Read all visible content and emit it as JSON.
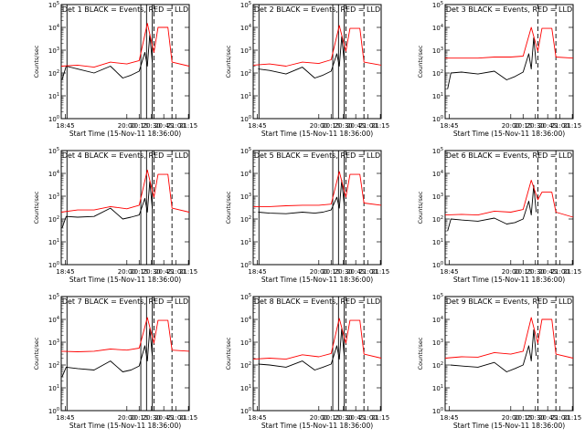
{
  "chart_data": [
    {
      "type": "line",
      "title": "Det 1  BLACK = Events, RED = LLD",
      "xlabel": "Start Time (15-Nov-11 18:36:00)",
      "ylabel": "Counts/sec",
      "ylog": true,
      "ylim": [
        1,
        100000
      ],
      "xlim": [
        "18:40",
        "21:16"
      ],
      "x_ticks": [
        "18:45",
        "20:00",
        "20:15",
        "20:30",
        "20:45",
        "21:00",
        "21:15"
      ],
      "y_ticks": [
        "10^0",
        "10^1",
        "10^2",
        "10^3",
        "10^4",
        "10^5"
      ],
      "series": [
        {
          "name": "BLACK = Events",
          "color": "#000000",
          "x": [
            "18:41",
            "18:46",
            "19:00",
            "19:20",
            "19:40",
            "19:55",
            "20:05",
            "20:15",
            "20:22",
            "20:25",
            "20:28",
            "20:31"
          ],
          "y": [
            50,
            200,
            150,
            100,
            200,
            60,
            80,
            120,
            800,
            200,
            5000,
            300
          ]
        },
        {
          "name": "RED = LLD",
          "color": "#ff0000",
          "x": [
            "18:40",
            "19:00",
            "19:20",
            "19:40",
            "20:00",
            "20:15",
            "20:25",
            "20:33",
            "20:38",
            "20:50",
            "20:55",
            "21:16"
          ],
          "y": [
            200,
            220,
            180,
            300,
            250,
            350,
            15000,
            800,
            10000,
            10000,
            300,
            200
          ]
        }
      ],
      "markers": {
        "solid": [
          "18:47",
          "20:17",
          "20:24",
          "20:31"
        ],
        "dashed": [
          "20:33",
          "20:55"
        ],
        "labels": [
          "F",
          "S",
          "E"
        ]
      }
    },
    {
      "type": "line",
      "title": "Det 2  BLACK = Events, RED = LLD",
      "xlabel": "Start Time (15-Nov-11 18:36:00)",
      "ylabel": "Counts/sec",
      "ylog": true,
      "ylim": [
        1,
        100000
      ],
      "xlim": [
        "18:40",
        "21:16"
      ],
      "x_ticks": [
        "18:45",
        "20:00",
        "20:15",
        "20:30",
        "20:45",
        "21:00",
        "21:15"
      ],
      "y_ticks": [
        "10^0",
        "10^1",
        "10^2",
        "10^3",
        "10^4",
        "10^5"
      ],
      "series": [
        {
          "name": "BLACK = Events",
          "color": "#000000",
          "x": [
            "18:46",
            "19:00",
            "19:20",
            "19:40",
            "19:55",
            "20:05",
            "20:15",
            "20:22",
            "20:25",
            "20:28",
            "20:31"
          ],
          "y": [
            150,
            130,
            90,
            180,
            60,
            80,
            120,
            700,
            200,
            4000,
            300
          ]
        },
        {
          "name": "RED = LLD",
          "color": "#ff0000",
          "x": [
            "18:40",
            "19:00",
            "19:20",
            "19:40",
            "20:00",
            "20:15",
            "20:25",
            "20:33",
            "20:38",
            "20:50",
            "20:55",
            "21:16"
          ],
          "y": [
            220,
            250,
            200,
            300,
            260,
            380,
            12000,
            900,
            9000,
            9000,
            300,
            220
          ]
        }
      ],
      "markers": {
        "solid": [
          "18:47",
          "20:17",
          "20:24",
          "20:31"
        ],
        "dashed": [
          "20:33",
          "20:55"
        ],
        "labels": [
          "F",
          "S",
          "E"
        ]
      }
    },
    {
      "type": "line",
      "title": "Det 3  BLACK = Events, RED = LLD",
      "xlabel": "Start Time (15-Nov-11 18:36:00)",
      "ylabel": "Counts/sec",
      "ylog": true,
      "ylim": [
        1,
        100000
      ],
      "xlim": [
        "18:40",
        "21:16"
      ],
      "x_ticks": [
        "18:45",
        "20:00",
        "20:15",
        "20:30",
        "20:45",
        "21:00",
        "21:15"
      ],
      "y_ticks": [
        "10^0",
        "10^1",
        "10^2",
        "10^3",
        "10^4",
        "10^5"
      ],
      "series": [
        {
          "name": "BLACK = Events",
          "color": "#000000",
          "x": [
            "18:43",
            "18:47",
            "19:00",
            "19:20",
            "19:40",
            "19:55",
            "20:05",
            "20:15",
            "20:22",
            "20:25",
            "20:28",
            "20:31"
          ],
          "y": [
            20,
            100,
            110,
            90,
            120,
            50,
            70,
            110,
            700,
            150,
            3500,
            250
          ]
        },
        {
          "name": "RED = LLD",
          "color": "#ff0000",
          "x": [
            "18:40",
            "19:00",
            "19:20",
            "19:40",
            "20:00",
            "20:15",
            "20:25",
            "20:33",
            "20:38",
            "20:50",
            "20:55",
            "21:16"
          ],
          "y": [
            450,
            450,
            450,
            500,
            500,
            550,
            10000,
            900,
            9000,
            9000,
            500,
            450
          ]
        }
      ],
      "markers": {
        "solid": [],
        "dashed": [
          "20:33",
          "20:55"
        ],
        "labels": [
          "F",
          "S",
          "E"
        ]
      }
    },
    {
      "type": "line",
      "title": "Det 4  BLACK = Events, RED = LLD",
      "xlabel": "Start Time (15-Nov-11 18:36:00)",
      "ylabel": "Counts/sec",
      "ylog": true,
      "ylim": [
        1,
        100000
      ],
      "xlim": [
        "18:40",
        "21:16"
      ],
      "x_ticks": [
        "18:45",
        "20:00",
        "20:15",
        "20:30",
        "20:45",
        "21:00",
        "21:15"
      ],
      "y_ticks": [
        "10^0",
        "10^1",
        "10^2",
        "10^3",
        "10^4",
        "10^5"
      ],
      "series": [
        {
          "name": "BLACK = Events",
          "color": "#000000",
          "x": [
            "18:41",
            "18:46",
            "19:00",
            "19:20",
            "19:40",
            "19:55",
            "20:05",
            "20:15",
            "20:22",
            "20:25",
            "20:28",
            "20:31"
          ],
          "y": [
            40,
            130,
            120,
            130,
            300,
            100,
            120,
            150,
            800,
            200,
            4500,
            300
          ]
        },
        {
          "name": "RED = LLD",
          "color": "#ff0000",
          "x": [
            "18:40",
            "19:00",
            "19:20",
            "19:40",
            "20:00",
            "20:15",
            "20:25",
            "20:33",
            "20:38",
            "20:50",
            "20:55",
            "21:16"
          ],
          "y": [
            200,
            250,
            250,
            350,
            280,
            400,
            14000,
            900,
            9000,
            9000,
            300,
            200
          ]
        }
      ],
      "markers": {
        "solid": [
          "18:47",
          "20:17",
          "20:24",
          "20:31"
        ],
        "dashed": [
          "20:33",
          "20:55"
        ],
        "labels": [
          "F",
          "S",
          "E"
        ]
      }
    },
    {
      "type": "line",
      "title": "Det 5  BLACK = Events, RED = LLD",
      "xlabel": "Start Time (15-Nov-11 18:36:00)",
      "ylabel": "Counts/sec",
      "ylog": true,
      "ylim": [
        1,
        100000
      ],
      "xlim": [
        "18:40",
        "21:16"
      ],
      "x_ticks": [
        "18:45",
        "20:00",
        "20:15",
        "20:30",
        "20:45",
        "21:00",
        "21:15"
      ],
      "y_ticks": [
        "10^0",
        "10^1",
        "10^2",
        "10^3",
        "10^4",
        "10^5"
      ],
      "series": [
        {
          "name": "BLACK = Events",
          "color": "#000000",
          "x": [
            "18:46",
            "19:00",
            "19:20",
            "19:40",
            "19:55",
            "20:05",
            "20:15",
            "20:22",
            "20:25",
            "20:28",
            "20:31"
          ],
          "y": [
            200,
            180,
            170,
            200,
            180,
            200,
            250,
            900,
            300,
            5000,
            400
          ]
        },
        {
          "name": "RED = LLD",
          "color": "#ff0000",
          "x": [
            "18:40",
            "19:00",
            "19:20",
            "19:40",
            "20:00",
            "20:15",
            "20:25",
            "20:33",
            "20:38",
            "20:50",
            "20:55",
            "21:16"
          ],
          "y": [
            350,
            350,
            380,
            400,
            400,
            450,
            12000,
            900,
            9000,
            9000,
            500,
            400
          ]
        }
      ],
      "markers": {
        "solid": [
          "18:47",
          "20:17",
          "20:24",
          "20:31"
        ],
        "dashed": [
          "20:33",
          "20:55"
        ],
        "labels": [
          "F",
          "S",
          "E"
        ]
      }
    },
    {
      "type": "line",
      "title": "Det 6  BLACK = Events, RED = LLD",
      "xlabel": "Start Time (15-Nov-11 18:36:00)",
      "ylabel": "Counts/sec",
      "ylog": true,
      "ylim": [
        1,
        100000
      ],
      "xlim": [
        "18:40",
        "21:16"
      ],
      "x_ticks": [
        "18:45",
        "20:00",
        "20:15",
        "20:30",
        "20:45",
        "21:00",
        "21:15"
      ],
      "y_ticks": [
        "10^0",
        "10^1",
        "10^2",
        "10^3",
        "10^4",
        "10^5"
      ],
      "series": [
        {
          "name": "BLACK = Events",
          "color": "#000000",
          "x": [
            "18:43",
            "18:47",
            "19:00",
            "19:20",
            "19:40",
            "19:55",
            "20:05",
            "20:15",
            "20:22",
            "20:25",
            "20:28",
            "20:31"
          ],
          "y": [
            30,
            100,
            90,
            80,
            110,
            60,
            70,
            100,
            600,
            150,
            3000,
            200
          ]
        },
        {
          "name": "RED = LLD",
          "color": "#ff0000",
          "x": [
            "18:40",
            "19:00",
            "19:20",
            "19:40",
            "20:00",
            "20:15",
            "20:25",
            "20:33",
            "20:38",
            "20:50",
            "20:55",
            "21:16"
          ],
          "y": [
            150,
            160,
            150,
            220,
            200,
            260,
            5000,
            700,
            1500,
            1500,
            200,
            120
          ]
        }
      ],
      "markers": {
        "solid": [],
        "dashed": [
          "20:33",
          "20:55"
        ],
        "labels": [
          "F",
          "S",
          "E"
        ]
      }
    },
    {
      "type": "line",
      "title": "Det 7  BLACK = Events, RED = LLD",
      "xlabel": "Start Time (15-Nov-11 18:36:00)",
      "ylabel": "Counts/sec",
      "ylog": true,
      "ylim": [
        1,
        100000
      ],
      "xlim": [
        "18:40",
        "21:16"
      ],
      "x_ticks": [
        "18:45",
        "20:00",
        "20:15",
        "20:30",
        "20:45",
        "21:00",
        "21:15"
      ],
      "y_ticks": [
        "10^0",
        "10^1",
        "10^2",
        "10^3",
        "10^4",
        "10^5"
      ],
      "series": [
        {
          "name": "BLACK = Events",
          "color": "#000000",
          "x": [
            "18:41",
            "18:46",
            "19:00",
            "19:20",
            "19:40",
            "19:55",
            "20:05",
            "20:15",
            "20:22",
            "20:25",
            "20:28",
            "20:31"
          ],
          "y": [
            30,
            80,
            70,
            60,
            150,
            50,
            60,
            90,
            700,
            150,
            4000,
            250
          ]
        },
        {
          "name": "RED = LLD",
          "color": "#ff0000",
          "x": [
            "18:40",
            "19:00",
            "19:20",
            "19:40",
            "20:00",
            "20:15",
            "20:25",
            "20:33",
            "20:38",
            "20:50",
            "20:55",
            "21:16"
          ],
          "y": [
            400,
            380,
            400,
            500,
            450,
            550,
            12000,
            900,
            9000,
            9000,
            450,
            400
          ]
        }
      ],
      "markers": {
        "solid": [
          "18:47",
          "20:17",
          "20:24",
          "20:31"
        ],
        "dashed": [
          "20:33",
          "20:55"
        ],
        "labels": [
          "F",
          "S",
          "E"
        ]
      }
    },
    {
      "type": "line",
      "title": "Det 8  BLACK = Events, RED = LLD",
      "xlabel": "Start Time (15-Nov-11 18:36:00)",
      "ylabel": "Counts/sec",
      "ylog": true,
      "ylim": [
        1,
        100000
      ],
      "xlim": [
        "18:40",
        "21:16"
      ],
      "x_ticks": [
        "18:45",
        "20:00",
        "20:15",
        "20:30",
        "20:45",
        "21:00",
        "21:15"
      ],
      "y_ticks": [
        "10^0",
        "10^1",
        "10^2",
        "10^3",
        "10^4",
        "10^5"
      ],
      "series": [
        {
          "name": "BLACK = Events",
          "color": "#000000",
          "x": [
            "18:46",
            "19:00",
            "19:20",
            "19:40",
            "19:55",
            "20:05",
            "20:15",
            "20:22",
            "20:25",
            "20:28",
            "20:31"
          ],
          "y": [
            110,
            100,
            80,
            150,
            60,
            80,
            110,
            700,
            180,
            4000,
            250
          ]
        },
        {
          "name": "RED = LLD",
          "color": "#ff0000",
          "x": [
            "18:40",
            "19:00",
            "19:20",
            "19:40",
            "20:00",
            "20:15",
            "20:25",
            "20:33",
            "20:38",
            "20:50",
            "20:55",
            "21:16"
          ],
          "y": [
            180,
            200,
            180,
            280,
            230,
            320,
            11000,
            900,
            9000,
            9000,
            300,
            200
          ]
        }
      ],
      "markers": {
        "solid": [
          "18:47",
          "20:17",
          "20:24",
          "20:31"
        ],
        "dashed": [
          "20:33",
          "20:55"
        ],
        "labels": [
          "F",
          "S",
          "E"
        ]
      }
    },
    {
      "type": "line",
      "title": "Det 9  BLACK = Events, RED = LLD",
      "xlabel": "Start Time (15-Nov-11 18:36:00)",
      "ylabel": "Counts/sec",
      "ylog": true,
      "ylim": [
        1,
        100000
      ],
      "xlim": [
        "18:40",
        "21:16"
      ],
      "x_ticks": [
        "18:45",
        "20:00",
        "20:15",
        "20:30",
        "20:45",
        "21:00",
        "21:15"
      ],
      "y_ticks": [
        "10^0",
        "10^1",
        "10^2",
        "10^3",
        "10^4",
        "10^5"
      ],
      "series": [
        {
          "name": "BLACK = Events",
          "color": "#000000",
          "x": [
            "18:46",
            "19:00",
            "19:20",
            "19:40",
            "19:55",
            "20:05",
            "20:15",
            "20:22",
            "20:25",
            "20:28",
            "20:31"
          ],
          "y": [
            100,
            90,
            80,
            130,
            50,
            70,
            100,
            700,
            150,
            3500,
            250
          ]
        },
        {
          "name": "RED = LLD",
          "color": "#ff0000",
          "x": [
            "18:40",
            "19:00",
            "19:20",
            "19:40",
            "20:00",
            "20:15",
            "20:25",
            "20:33",
            "20:38",
            "20:50",
            "20:55",
            "21:16"
          ],
          "y": [
            200,
            230,
            220,
            350,
            300,
            400,
            12000,
            900,
            10000,
            10000,
            300,
            200
          ]
        }
      ],
      "markers": {
        "solid": [],
        "dashed": [
          "20:33",
          "20:55"
        ],
        "labels": [
          "F",
          "S",
          "E"
        ]
      }
    }
  ]
}
